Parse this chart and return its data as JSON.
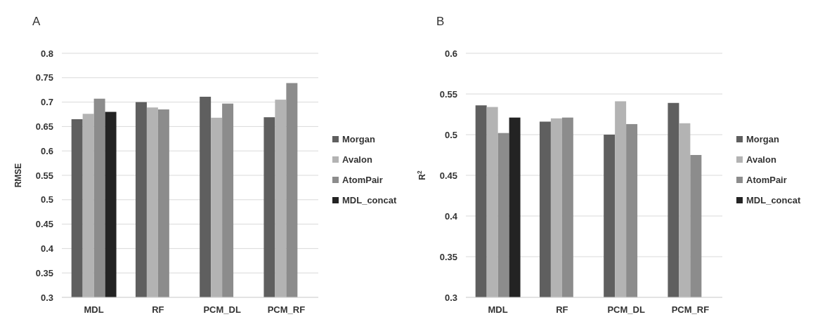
{
  "chart_data": [
    {
      "type": "bar",
      "title": "A",
      "ylabel": "RMSE",
      "categories": [
        "MDL",
        "RF",
        "PCM_DL",
        "PCM_RF"
      ],
      "series": [
        {
          "name": "Morgan",
          "color": "#5f5f5f",
          "values": [
            0.665,
            0.7,
            0.711,
            0.669
          ]
        },
        {
          "name": "Avalon",
          "color": "#b3b3b3",
          "values": [
            0.676,
            0.689,
            0.668,
            0.705
          ]
        },
        {
          "name": "AtomPair",
          "color": "#8c8c8c",
          "values": [
            0.707,
            0.685,
            0.697,
            0.739
          ]
        },
        {
          "name": "MDL_concat",
          "color": "#232323",
          "values": [
            0.68,
            null,
            null,
            null
          ]
        }
      ],
      "ylim": [
        0.3,
        0.8
      ],
      "yticks": [
        0.3,
        0.35,
        0.4,
        0.45,
        0.5,
        0.55,
        0.6,
        0.65,
        0.7,
        0.75,
        0.8
      ],
      "grid": "y",
      "legend": "right"
    },
    {
      "type": "bar",
      "title": "B",
      "ylabel": "R$^{2}$",
      "categories": [
        "MDL",
        "RF",
        "PCM_DL",
        "PCM_RF"
      ],
      "series": [
        {
          "name": "Morgan",
          "color": "#5f5f5f",
          "values": [
            0.536,
            0.516,
            0.5,
            0.539
          ]
        },
        {
          "name": "Avalon",
          "color": "#b3b3b3",
          "values": [
            0.534,
            0.52,
            0.541,
            0.514
          ]
        },
        {
          "name": "AtomPair",
          "color": "#8c8c8c",
          "values": [
            0.502,
            0.521,
            0.513,
            0.475
          ]
        },
        {
          "name": "MDL_concat",
          "color": "#232323",
          "values": [
            0.521,
            null,
            null,
            null
          ]
        }
      ],
      "ylim": [
        0.3,
        0.6
      ],
      "yticks": [
        0.3,
        0.35,
        0.4,
        0.45,
        0.5,
        0.55,
        0.6
      ],
      "grid": "y",
      "legend": "right"
    }
  ]
}
